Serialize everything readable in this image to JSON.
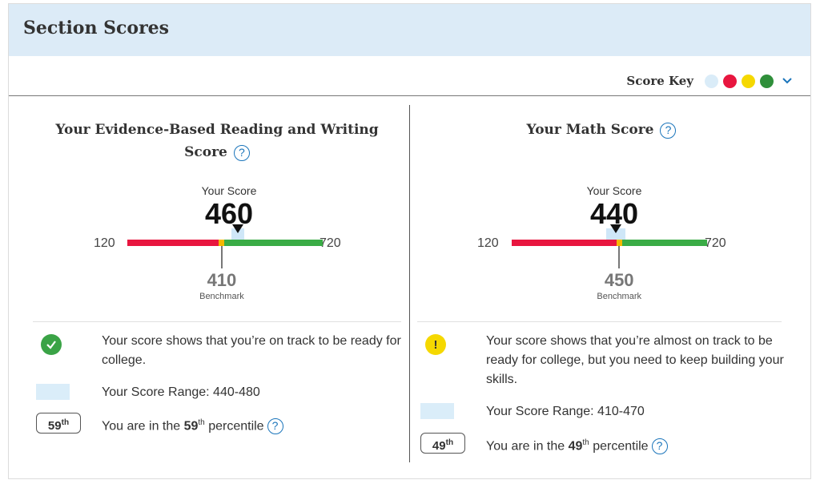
{
  "section": {
    "title": "Section Scores"
  },
  "score_key": {
    "label": "Score Key",
    "colors": [
      "#daecf8",
      "#e8163f",
      "#f5d800",
      "#2f8f3a"
    ],
    "chevron_color": "#1b75bb"
  },
  "ebrw": {
    "title_line1": "Your Evidence-Based Reading and Writing",
    "title_line2": "Score",
    "help": "?",
    "your_score_label": "Your Score",
    "score": "460",
    "score_value": 460,
    "min": "120",
    "max": "720",
    "min_value": 120,
    "max_value": 720,
    "range_low": 440,
    "range_high": 480,
    "benchmark": "410",
    "benchmark_value": 410,
    "benchmark_label": "Benchmark",
    "status_icon": "check-icon",
    "status_color": "#3aa346",
    "message": "Your score shows that you’re on track to be ready for college.",
    "range_text": "Your Score Range: 440-480",
    "percentile": "59",
    "percentile_suffix": "th",
    "percentile_prefix": "You are in the",
    "percentile_word": "percentile"
  },
  "math": {
    "title": "Your Math Score",
    "help": "?",
    "your_score_label": "Your Score",
    "score": "440",
    "score_value": 440,
    "min": "120",
    "max": "720",
    "min_value": 120,
    "max_value": 720,
    "range_low": 410,
    "range_high": 470,
    "benchmark": "450",
    "benchmark_value": 450,
    "benchmark_label": "Benchmark",
    "status_icon": "exclamation-icon",
    "status_color": "#f5d800",
    "message": "Your score shows that you’re almost on track to be ready for college, but you need to keep building your skills.",
    "range_text": "Your Score Range: 410-470",
    "percentile": "49",
    "percentile_suffix": "th",
    "percentile_prefix": "You are in the",
    "percentile_word": "percentile"
  },
  "bar_colors": {
    "below": "#e8163f",
    "near": "#f5b800",
    "above": "#3aac46"
  }
}
